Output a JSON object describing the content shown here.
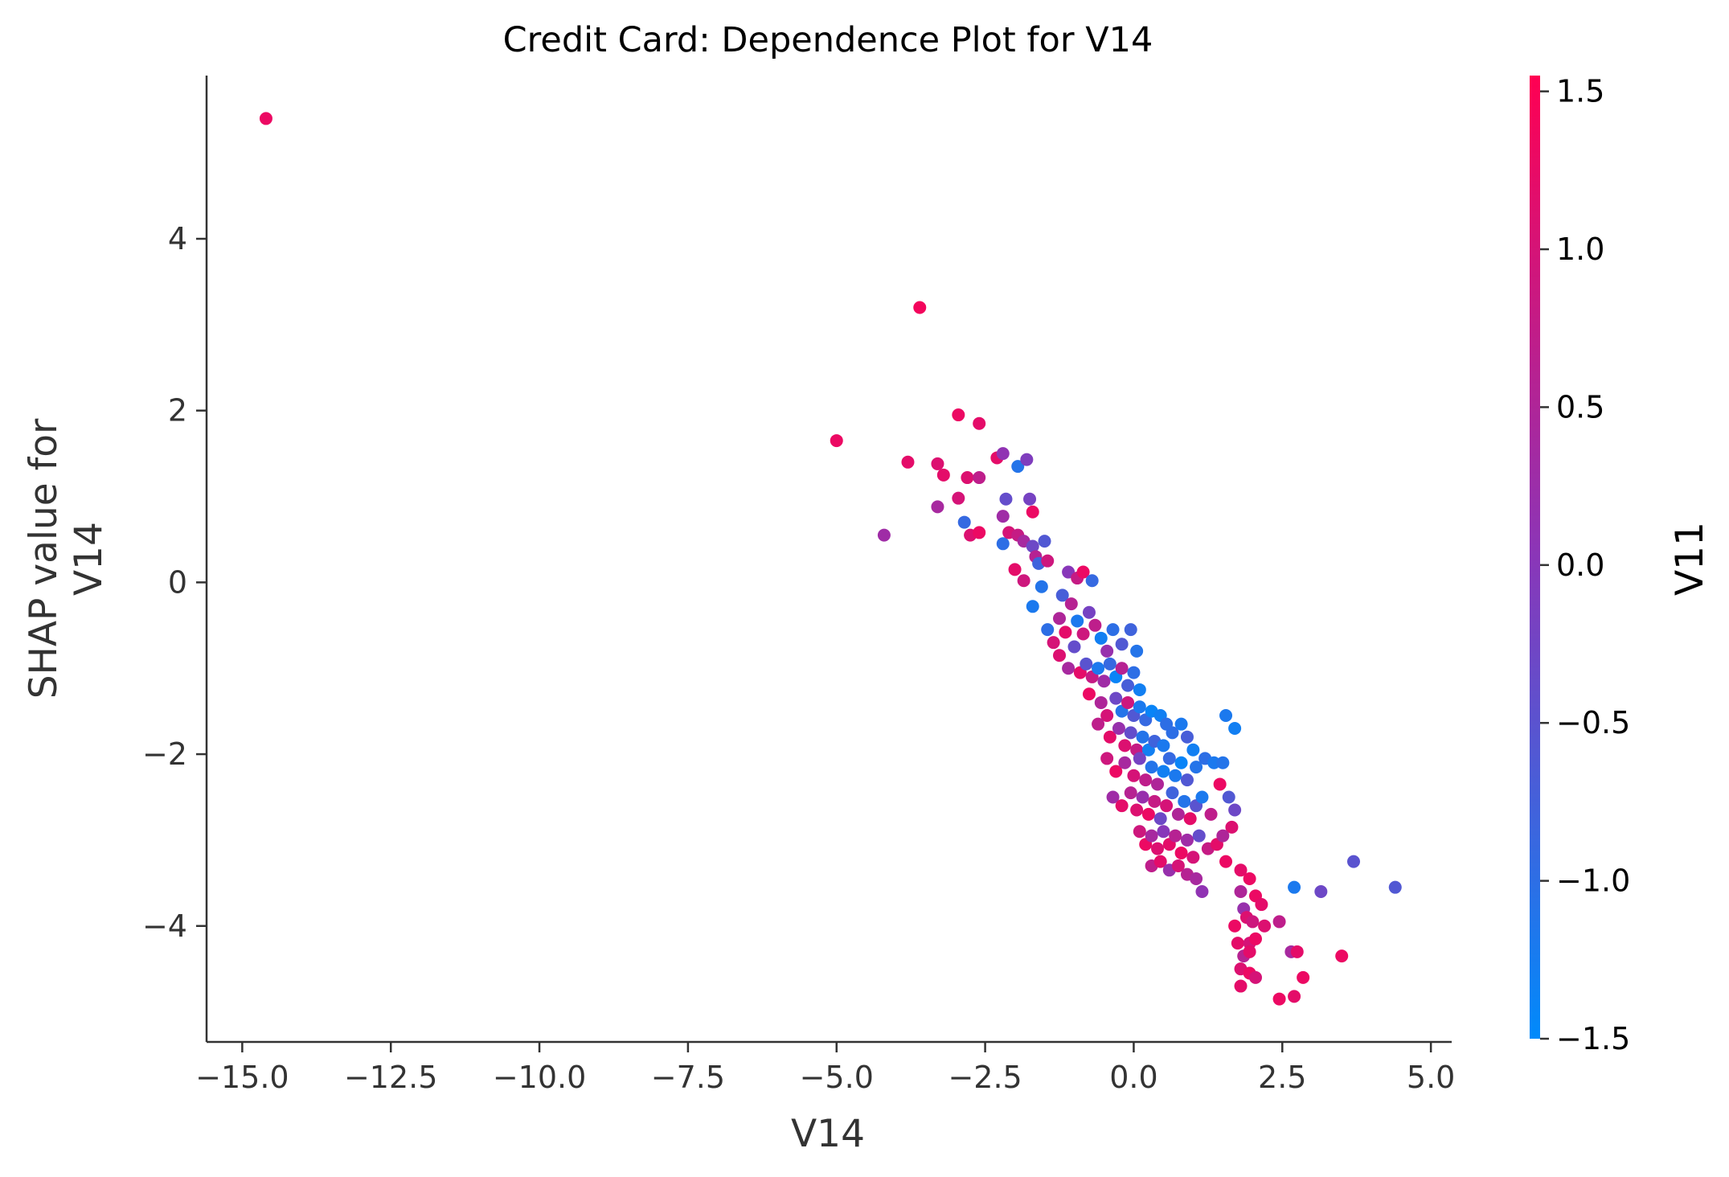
{
  "chart_data": {
    "type": "scatter",
    "title": "Credit Card: Dependence Plot for V14",
    "xlabel": "V14",
    "ylabel_lines": [
      "SHAP value for",
      "V14"
    ],
    "xlim": [
      -15.6,
      5.35
    ],
    "ylim": [
      -5.35,
      5.9
    ],
    "x_ticks": [
      -15.0,
      -12.5,
      -10.0,
      -7.5,
      -5.0,
      -2.5,
      0.0,
      2.5,
      5.0
    ],
    "x_tick_labels": [
      "−15.0",
      "−12.5",
      "−10.0",
      "−7.5",
      "−5.0",
      "−2.5",
      "0.0",
      "2.5",
      "5.0"
    ],
    "y_ticks": [
      -4,
      -2,
      0,
      2,
      4
    ],
    "y_tick_labels": [
      "−4",
      "−2",
      "0",
      "2",
      "4"
    ],
    "grid": false,
    "colorbar": {
      "label": "V11",
      "range": [
        -1.5,
        1.55
      ],
      "ticks": [
        -1.5,
        -1.0,
        -0.5,
        0.0,
        0.5,
        1.0,
        1.5
      ],
      "tick_labels": [
        "−1.5",
        "−1.0",
        "−0.5",
        "0.0",
        "0.5",
        "1.0",
        "1.5"
      ],
      "color_low": "#008afb",
      "color_mid": "#8a36b8",
      "color_high": "#ff0052"
    },
    "points": [
      {
        "x": -14.6,
        "y": 5.4,
        "c": 1.3
      },
      {
        "x": -3.6,
        "y": 3.2,
        "c": 1.4
      },
      {
        "x": -5.0,
        "y": 1.65,
        "c": 1.3
      },
      {
        "x": -4.2,
        "y": 0.55,
        "c": 0.3
      },
      {
        "x": -3.8,
        "y": 1.4,
        "c": 1.2
      },
      {
        "x": -3.3,
        "y": 1.38,
        "c": 1.1
      },
      {
        "x": -3.2,
        "y": 1.25,
        "c": 1.2
      },
      {
        "x": -2.95,
        "y": 1.95,
        "c": 1.3
      },
      {
        "x": -2.6,
        "y": 1.85,
        "c": 1.2
      },
      {
        "x": -3.3,
        "y": 0.88,
        "c": 0.4
      },
      {
        "x": -2.95,
        "y": 0.98,
        "c": 1.0
      },
      {
        "x": -2.8,
        "y": 1.22,
        "c": 1.1
      },
      {
        "x": -2.6,
        "y": 1.22,
        "c": 0.7
      },
      {
        "x": -2.3,
        "y": 1.45,
        "c": 1.2
      },
      {
        "x": -2.2,
        "y": 1.5,
        "c": 0.1
      },
      {
        "x": -1.95,
        "y": 1.35,
        "c": -1.1
      },
      {
        "x": -1.8,
        "y": 1.43,
        "c": -0.1
      },
      {
        "x": -2.85,
        "y": 0.7,
        "c": -0.9
      },
      {
        "x": -2.75,
        "y": 0.55,
        "c": 1.1
      },
      {
        "x": -2.6,
        "y": 0.58,
        "c": 1.3
      },
      {
        "x": -2.2,
        "y": 0.45,
        "c": -1.0
      },
      {
        "x": -2.1,
        "y": 0.58,
        "c": 1.0
      },
      {
        "x": -2.2,
        "y": 0.77,
        "c": 0.3
      },
      {
        "x": -2.15,
        "y": 0.97,
        "c": -0.4
      },
      {
        "x": -1.75,
        "y": 0.97,
        "c": -0.2
      },
      {
        "x": -1.7,
        "y": 0.82,
        "c": 1.3
      },
      {
        "x": -1.95,
        "y": 0.55,
        "c": 0.8
      },
      {
        "x": -1.85,
        "y": 0.48,
        "c": 0.4
      },
      {
        "x": -1.7,
        "y": 0.42,
        "c": -0.3
      },
      {
        "x": -1.5,
        "y": 0.48,
        "c": -0.6
      },
      {
        "x": -1.65,
        "y": 0.3,
        "c": 0.6
      },
      {
        "x": -1.6,
        "y": 0.22,
        "c": -0.8
      },
      {
        "x": -1.45,
        "y": 0.25,
        "c": 0.9
      },
      {
        "x": -2.0,
        "y": 0.15,
        "c": 1.2
      },
      {
        "x": -1.85,
        "y": 0.02,
        "c": 0.9
      },
      {
        "x": -1.7,
        "y": -0.28,
        "c": -1.2
      },
      {
        "x": -1.55,
        "y": -0.05,
        "c": -1.1
      },
      {
        "x": -1.45,
        "y": -0.55,
        "c": -1.0
      },
      {
        "x": -1.35,
        "y": -0.7,
        "c": 1.0
      },
      {
        "x": -1.25,
        "y": -0.42,
        "c": 0.5
      },
      {
        "x": -1.2,
        "y": -0.15,
        "c": -0.7
      },
      {
        "x": -1.1,
        "y": 0.12,
        "c": 0.0
      },
      {
        "x": -0.95,
        "y": 0.05,
        "c": 0.8
      },
      {
        "x": -0.85,
        "y": 0.12,
        "c": 1.3
      },
      {
        "x": -0.7,
        "y": 0.02,
        "c": -0.9
      },
      {
        "x": -1.05,
        "y": -0.25,
        "c": 0.6
      },
      {
        "x": -0.95,
        "y": -0.45,
        "c": -1.2
      },
      {
        "x": -1.15,
        "y": -0.58,
        "c": 1.2
      },
      {
        "x": -1.0,
        "y": -0.75,
        "c": -0.4
      },
      {
        "x": -0.85,
        "y": -0.6,
        "c": 0.9
      },
      {
        "x": -0.75,
        "y": -0.35,
        "c": -0.2
      },
      {
        "x": -0.65,
        "y": -0.5,
        "c": 0.7
      },
      {
        "x": -0.55,
        "y": -0.65,
        "c": -1.3
      },
      {
        "x": -0.45,
        "y": -0.8,
        "c": 0.2
      },
      {
        "x": -0.35,
        "y": -0.55,
        "c": -1.0
      },
      {
        "x": -0.2,
        "y": -0.72,
        "c": -0.6
      },
      {
        "x": -0.05,
        "y": -0.55,
        "c": -0.8
      },
      {
        "x": 0.05,
        "y": -0.8,
        "c": -1.1
      },
      {
        "x": -1.25,
        "y": -0.85,
        "c": 1.1
      },
      {
        "x": -1.1,
        "y": -1.0,
        "c": 0.4
      },
      {
        "x": -0.9,
        "y": -1.05,
        "c": 1.2
      },
      {
        "x": -0.8,
        "y": -0.95,
        "c": -0.5
      },
      {
        "x": -0.7,
        "y": -1.1,
        "c": 0.8
      },
      {
        "x": -0.6,
        "y": -1.0,
        "c": -1.2
      },
      {
        "x": -0.5,
        "y": -1.15,
        "c": 0.3
      },
      {
        "x": -0.4,
        "y": -0.95,
        "c": -0.9
      },
      {
        "x": -0.3,
        "y": -1.1,
        "c": -1.4
      },
      {
        "x": -0.2,
        "y": -1.0,
        "c": 0.6
      },
      {
        "x": -0.1,
        "y": -1.2,
        "c": -0.7
      },
      {
        "x": 0.0,
        "y": -1.05,
        "c": -1.0
      },
      {
        "x": 0.1,
        "y": -1.25,
        "c": -1.3
      },
      {
        "x": -0.75,
        "y": -1.3,
        "c": 1.3
      },
      {
        "x": -0.55,
        "y": -1.4,
        "c": 0.5
      },
      {
        "x": -0.45,
        "y": -1.55,
        "c": 1.0
      },
      {
        "x": -0.3,
        "y": -1.35,
        "c": -0.3
      },
      {
        "x": -0.2,
        "y": -1.5,
        "c": -1.1
      },
      {
        "x": -0.1,
        "y": -1.4,
        "c": 0.9
      },
      {
        "x": 0.0,
        "y": -1.55,
        "c": -0.6
      },
      {
        "x": 0.1,
        "y": -1.45,
        "c": -1.2
      },
      {
        "x": 0.2,
        "y": -1.6,
        "c": -0.9
      },
      {
        "x": 0.3,
        "y": -1.5,
        "c": -1.4
      },
      {
        "x": 0.45,
        "y": -1.55,
        "c": -1.3
      },
      {
        "x": 0.55,
        "y": -1.65,
        "c": -1.0
      },
      {
        "x": -0.6,
        "y": -1.65,
        "c": 0.7
      },
      {
        "x": -0.4,
        "y": -1.8,
        "c": 1.2
      },
      {
        "x": -0.25,
        "y": -1.7,
        "c": 0.2
      },
      {
        "x": -0.15,
        "y": -1.9,
        "c": 1.1
      },
      {
        "x": -0.05,
        "y": -1.75,
        "c": -0.4
      },
      {
        "x": 0.05,
        "y": -1.95,
        "c": 0.8
      },
      {
        "x": 0.15,
        "y": -1.8,
        "c": -1.1
      },
      {
        "x": 0.25,
        "y": -1.95,
        "c": -1.3
      },
      {
        "x": 0.35,
        "y": -1.85,
        "c": -0.8
      },
      {
        "x": 0.5,
        "y": -1.9,
        "c": -1.2
      },
      {
        "x": 0.65,
        "y": -1.75,
        "c": -1.0
      },
      {
        "x": 0.8,
        "y": -1.65,
        "c": -1.2
      },
      {
        "x": 0.9,
        "y": -1.8,
        "c": -0.7
      },
      {
        "x": 1.0,
        "y": -1.95,
        "c": -1.3
      },
      {
        "x": -0.45,
        "y": -2.05,
        "c": 0.9
      },
      {
        "x": -0.3,
        "y": -2.2,
        "c": 1.3
      },
      {
        "x": -0.15,
        "y": -2.1,
        "c": 0.4
      },
      {
        "x": 0.0,
        "y": -2.25,
        "c": 1.0
      },
      {
        "x": 0.1,
        "y": -2.05,
        "c": -0.2
      },
      {
        "x": 0.2,
        "y": -2.3,
        "c": 0.7
      },
      {
        "x": 0.3,
        "y": -2.15,
        "c": -1.1
      },
      {
        "x": 0.4,
        "y": -2.35,
        "c": 0.5
      },
      {
        "x": 0.5,
        "y": -2.2,
        "c": -1.3
      },
      {
        "x": 0.6,
        "y": -2.05,
        "c": -0.9
      },
      {
        "x": 0.7,
        "y": -2.25,
        "c": -1.2
      },
      {
        "x": 0.8,
        "y": -2.1,
        "c": -1.4
      },
      {
        "x": 0.9,
        "y": -2.3,
        "c": -0.6
      },
      {
        "x": 1.05,
        "y": -2.15,
        "c": -1.1
      },
      {
        "x": 1.2,
        "y": -2.05,
        "c": -1.0
      },
      {
        "x": 1.35,
        "y": -2.1,
        "c": -1.2
      },
      {
        "x": 1.55,
        "y": -1.55,
        "c": -1.2
      },
      {
        "x": 1.7,
        "y": -1.7,
        "c": -1.3
      },
      {
        "x": 1.5,
        "y": -2.1,
        "c": -1.1
      },
      {
        "x": -0.35,
        "y": -2.5,
        "c": 0.3
      },
      {
        "x": -0.2,
        "y": -2.6,
        "c": 1.2
      },
      {
        "x": -0.05,
        "y": -2.45,
        "c": 0.6
      },
      {
        "x": 0.05,
        "y": -2.65,
        "c": 1.1
      },
      {
        "x": 0.15,
        "y": -2.5,
        "c": 0.2
      },
      {
        "x": 0.25,
        "y": -2.7,
        "c": 1.3
      },
      {
        "x": 0.35,
        "y": -2.55,
        "c": 0.8
      },
      {
        "x": 0.45,
        "y": -2.75,
        "c": -0.3
      },
      {
        "x": 0.55,
        "y": -2.6,
        "c": 1.0
      },
      {
        "x": 0.65,
        "y": -2.45,
        "c": -0.8
      },
      {
        "x": 0.75,
        "y": -2.7,
        "c": 0.5
      },
      {
        "x": 0.85,
        "y": -2.55,
        "c": -1.1
      },
      {
        "x": 0.95,
        "y": -2.75,
        "c": 1.2
      },
      {
        "x": 1.05,
        "y": -2.6,
        "c": -0.5
      },
      {
        "x": 1.15,
        "y": -2.5,
        "c": -1.2
      },
      {
        "x": 1.3,
        "y": -2.7,
        "c": 0.7
      },
      {
        "x": 1.45,
        "y": -2.35,
        "c": 1.3
      },
      {
        "x": 1.6,
        "y": -2.5,
        "c": -0.6
      },
      {
        "x": 1.7,
        "y": -2.65,
        "c": -0.3
      },
      {
        "x": 1.65,
        "y": -2.85,
        "c": 1.1
      },
      {
        "x": 0.1,
        "y": -2.9,
        "c": 0.9
      },
      {
        "x": 0.2,
        "y": -3.05,
        "c": 1.3
      },
      {
        "x": 0.3,
        "y": -2.95,
        "c": 0.4
      },
      {
        "x": 0.4,
        "y": -3.1,
        "c": 1.1
      },
      {
        "x": 0.5,
        "y": -2.9,
        "c": 0.0
      },
      {
        "x": 0.6,
        "y": -3.05,
        "c": 1.2
      },
      {
        "x": 0.7,
        "y": -2.95,
        "c": 0.6
      },
      {
        "x": 0.8,
        "y": -3.15,
        "c": 1.3
      },
      {
        "x": 0.9,
        "y": -3.0,
        "c": 0.3
      },
      {
        "x": 1.0,
        "y": -3.2,
        "c": 1.0
      },
      {
        "x": 1.1,
        "y": -2.95,
        "c": -0.4
      },
      {
        "x": 1.25,
        "y": -3.1,
        "c": 0.8
      },
      {
        "x": 1.4,
        "y": -3.05,
        "c": 1.2
      },
      {
        "x": 1.5,
        "y": -2.95,
        "c": 0.5
      },
      {
        "x": 0.3,
        "y": -3.3,
        "c": 0.7
      },
      {
        "x": 0.45,
        "y": -3.25,
        "c": 1.2
      },
      {
        "x": 0.6,
        "y": -3.35,
        "c": 0.2
      },
      {
        "x": 0.75,
        "y": -3.3,
        "c": 1.0
      },
      {
        "x": 0.9,
        "y": -3.4,
        "c": 0.6
      },
      {
        "x": 1.05,
        "y": -3.45,
        "c": 0.4
      },
      {
        "x": 1.15,
        "y": -3.6,
        "c": 0.1
      },
      {
        "x": 1.55,
        "y": -3.25,
        "c": 1.3
      },
      {
        "x": 1.8,
        "y": -3.35,
        "c": 1.2
      },
      {
        "x": 1.95,
        "y": -3.45,
        "c": 1.3
      },
      {
        "x": 1.8,
        "y": -3.6,
        "c": 0.5
      },
      {
        "x": 2.05,
        "y": -3.65,
        "c": 1.3
      },
      {
        "x": 2.15,
        "y": -3.75,
        "c": 1.2
      },
      {
        "x": 1.85,
        "y": -3.8,
        "c": 0.2
      },
      {
        "x": 1.9,
        "y": -3.9,
        "c": 1.1
      },
      {
        "x": 2.0,
        "y": -3.95,
        "c": 0.9
      },
      {
        "x": 1.7,
        "y": -4.0,
        "c": 1.3
      },
      {
        "x": 2.2,
        "y": -4.0,
        "c": 1.1
      },
      {
        "x": 2.45,
        "y": -3.95,
        "c": 0.7
      },
      {
        "x": 1.75,
        "y": -4.2,
        "c": 1.2
      },
      {
        "x": 1.95,
        "y": -4.2,
        "c": 1.0
      },
      {
        "x": 2.05,
        "y": -4.15,
        "c": 1.3
      },
      {
        "x": 1.85,
        "y": -4.35,
        "c": 0.6
      },
      {
        "x": 1.95,
        "y": -4.3,
        "c": 1.2
      },
      {
        "x": 1.8,
        "y": -4.5,
        "c": 1.1
      },
      {
        "x": 1.95,
        "y": -4.55,
        "c": 1.3
      },
      {
        "x": 2.05,
        "y": -4.6,
        "c": 1.0
      },
      {
        "x": 1.8,
        "y": -4.7,
        "c": 1.2
      },
      {
        "x": 2.65,
        "y": -4.3,
        "c": 0.4
      },
      {
        "x": 2.75,
        "y": -4.3,
        "c": 1.2
      },
      {
        "x": 2.85,
        "y": -4.6,
        "c": 1.3
      },
      {
        "x": 2.45,
        "y": -4.85,
        "c": 1.3
      },
      {
        "x": 2.7,
        "y": -4.82,
        "c": 1.2
      },
      {
        "x": 3.5,
        "y": -4.35,
        "c": 1.3
      },
      {
        "x": 2.7,
        "y": -3.55,
        "c": -1.2
      },
      {
        "x": 3.15,
        "y": -3.6,
        "c": -0.3
      },
      {
        "x": 3.7,
        "y": -3.25,
        "c": -0.5
      },
      {
        "x": 4.4,
        "y": -3.55,
        "c": -0.6
      }
    ]
  }
}
